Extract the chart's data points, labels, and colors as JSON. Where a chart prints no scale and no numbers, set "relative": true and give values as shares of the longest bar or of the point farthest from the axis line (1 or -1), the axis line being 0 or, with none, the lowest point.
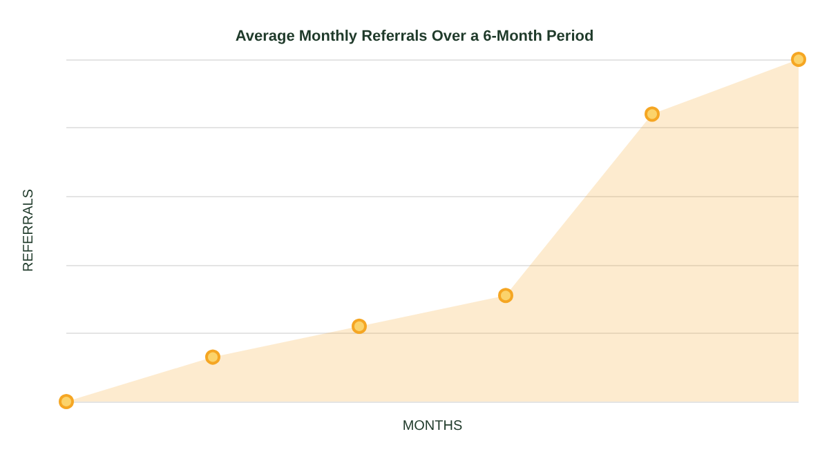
{
  "chart_data": {
    "type": "area",
    "title": "Average Monthly Referrals Over a 6-Month Period",
    "xlabel": "MONTHS",
    "ylabel": "REFERRALS",
    "categories": [
      null,
      null,
      null,
      null,
      null,
      null
    ],
    "relative": true,
    "grid": "y",
    "marker": "circle",
    "series": [
      {
        "color": "#f5a623",
        "values": [
          0,
          0.13,
          0.22,
          0.31,
          0.84,
          1
        ]
      }
    ]
  }
}
